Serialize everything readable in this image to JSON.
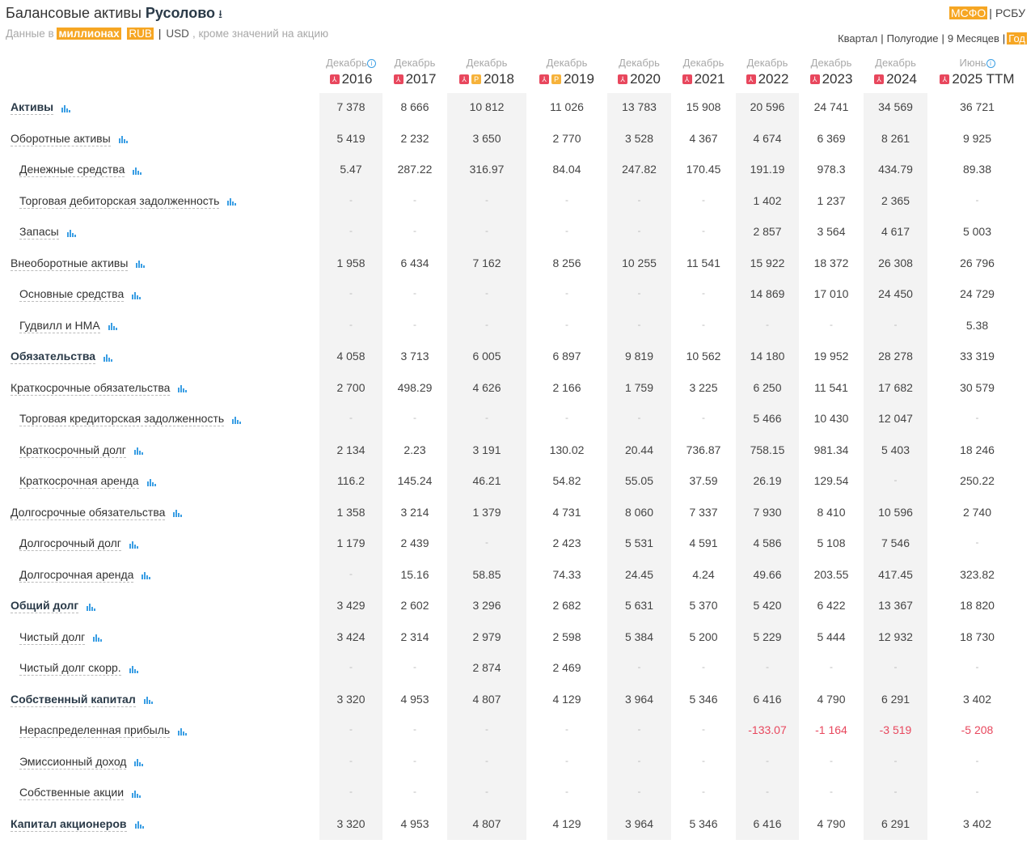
{
  "header": {
    "title_prefix": "Балансовые активы",
    "company": "Русолово",
    "download_icon": "download-icon",
    "sub_prefix": "Данные в",
    "units": "миллионах",
    "cur_rub": "RUB",
    "cur_sep": "|",
    "cur_usd": "USD",
    "sub_suffix": ", кроме значений на акцию",
    "std_ifrs": "МСФО",
    "std_sep": "|",
    "std_ras": "РСБУ",
    "periods": [
      "Квартал",
      "Полугодие",
      "9 Месяцев",
      "Год"
    ],
    "period_sep": "|"
  },
  "colors": {
    "accent": "#f6a623",
    "blue": "#3a9ee4",
    "negative": "#e8475d"
  },
  "columns": [
    {
      "month": "Декабрь",
      "year": "2016",
      "info": true,
      "pdf": true,
      "rsbu": false
    },
    {
      "month": "Декабрь",
      "year": "2017",
      "pdf": true,
      "rsbu": false
    },
    {
      "month": "Декабрь",
      "year": "2018",
      "pdf": true,
      "rsbu": true
    },
    {
      "month": "Декабрь",
      "year": "2019",
      "pdf": true,
      "rsbu": true
    },
    {
      "month": "Декабрь",
      "year": "2020",
      "pdf": true,
      "rsbu": false
    },
    {
      "month": "Декабрь",
      "year": "2021",
      "pdf": true,
      "rsbu": false
    },
    {
      "month": "Декабрь",
      "year": "2022",
      "pdf": true,
      "rsbu": false
    },
    {
      "month": "Декабрь",
      "year": "2023",
      "pdf": true,
      "rsbu": false
    },
    {
      "month": "Декабрь",
      "year": "2024",
      "pdf": true,
      "rsbu": false
    },
    {
      "month": "Июнь",
      "year": "2025 TTM",
      "info": true,
      "pdf": true,
      "rsbu": false
    }
  ],
  "badges": {
    "pdf": "",
    "rsbu": "P",
    "info": "i"
  },
  "rows": [
    {
      "label": "Активы",
      "level": "bold",
      "values": [
        "7 378",
        "8 666",
        "10 812",
        "11 026",
        "13 783",
        "15 908",
        "20 596",
        "24 741",
        "34 569",
        "36 721"
      ]
    },
    {
      "label": "Оборотные активы",
      "level": "0",
      "values": [
        "5 419",
        "2 232",
        "3 650",
        "2 770",
        "3 528",
        "4 367",
        "4 674",
        "6 369",
        "8 261",
        "9 925"
      ]
    },
    {
      "label": "Денежные средства",
      "level": "1",
      "values": [
        "5.47",
        "287.22",
        "316.97",
        "84.04",
        "247.82",
        "170.45",
        "191.19",
        "978.3",
        "434.79",
        "89.38"
      ]
    },
    {
      "label": "Торговая дебиторская задолженность",
      "level": "1",
      "values": [
        "-",
        "-",
        "-",
        "-",
        "-",
        "-",
        "1 402",
        "1 237",
        "2 365",
        "-"
      ]
    },
    {
      "label": "Запасы",
      "level": "1",
      "values": [
        "-",
        "-",
        "-",
        "-",
        "-",
        "-",
        "2 857",
        "3 564",
        "4 617",
        "5 003"
      ]
    },
    {
      "label": "Внеоборотные активы",
      "level": "0",
      "values": [
        "1 958",
        "6 434",
        "7 162",
        "8 256",
        "10 255",
        "11 541",
        "15 922",
        "18 372",
        "26 308",
        "26 796"
      ]
    },
    {
      "label": "Основные средства",
      "level": "1",
      "values": [
        "-",
        "-",
        "-",
        "-",
        "-",
        "-",
        "14 869",
        "17 010",
        "24 450",
        "24 729"
      ]
    },
    {
      "label": "Гудвилл и НМА",
      "level": "1",
      "values": [
        "-",
        "-",
        "-",
        "-",
        "-",
        "-",
        "-",
        "-",
        "-",
        "5.38"
      ]
    },
    {
      "label": "Обязательства",
      "level": "bold",
      "values": [
        "4 058",
        "3 713",
        "6 005",
        "6 897",
        "9 819",
        "10 562",
        "14 180",
        "19 952",
        "28 278",
        "33 319"
      ]
    },
    {
      "label": "Краткосрочные обязательства",
      "level": "0",
      "values": [
        "2 700",
        "498.29",
        "4 626",
        "2 166",
        "1 759",
        "3 225",
        "6 250",
        "11 541",
        "17 682",
        "30 579"
      ]
    },
    {
      "label": "Торговая кредиторская задолженность",
      "level": "1",
      "values": [
        "-",
        "-",
        "-",
        "-",
        "-",
        "-",
        "5 466",
        "10 430",
        "12 047",
        "-"
      ]
    },
    {
      "label": "Краткосрочный долг",
      "level": "1",
      "values": [
        "2 134",
        "2.23",
        "3 191",
        "130.02",
        "20.44",
        "736.87",
        "758.15",
        "981.34",
        "5 403",
        "18 246"
      ]
    },
    {
      "label": "Краткосрочная аренда",
      "level": "1",
      "values": [
        "116.2",
        "145.24",
        "46.21",
        "54.82",
        "55.05",
        "37.59",
        "26.19",
        "129.54",
        "-",
        "250.22"
      ]
    },
    {
      "label": "Долгосрочные обязательства",
      "level": "0",
      "values": [
        "1 358",
        "3 214",
        "1 379",
        "4 731",
        "8 060",
        "7 337",
        "7 930",
        "8 410",
        "10 596",
        "2 740"
      ]
    },
    {
      "label": "Долгосрочный долг",
      "level": "1",
      "values": [
        "1 179",
        "2 439",
        "-",
        "2 423",
        "5 531",
        "4 591",
        "4 586",
        "5 108",
        "7 546",
        "-"
      ]
    },
    {
      "label": "Долгосрочная аренда",
      "level": "1",
      "values": [
        "-",
        "15.16",
        "58.85",
        "74.33",
        "24.45",
        "4.24",
        "49.66",
        "203.55",
        "417.45",
        "323.82"
      ]
    },
    {
      "label": "Общий долг",
      "level": "bold",
      "values": [
        "3 429",
        "2 602",
        "3 296",
        "2 682",
        "5 631",
        "5 370",
        "5 420",
        "6 422",
        "13 367",
        "18 820"
      ]
    },
    {
      "label": "Чистый долг",
      "level": "1",
      "values": [
        "3 424",
        "2 314",
        "2 979",
        "2 598",
        "5 384",
        "5 200",
        "5 229",
        "5 444",
        "12 932",
        "18 730"
      ]
    },
    {
      "label": "Чистый долг скорр.",
      "level": "1",
      "values": [
        "-",
        "-",
        "2 874",
        "2 469",
        "-",
        "-",
        "-",
        "-",
        "-",
        "-"
      ]
    },
    {
      "label": "Собственный капитал",
      "level": "bold",
      "values": [
        "3 320",
        "4 953",
        "4 807",
        "4 129",
        "3 964",
        "5 346",
        "6 416",
        "4 790",
        "6 291",
        "3 402"
      ]
    },
    {
      "label": "Нераспределенная прибыль",
      "level": "1",
      "values": [
        "-",
        "-",
        "-",
        "-",
        "-",
        "-",
        "-133.07",
        "-1 164",
        "-3 519",
        "-5 208"
      ]
    },
    {
      "label": "Эмиссионный доход",
      "level": "1",
      "values": [
        "-",
        "-",
        "-",
        "-",
        "-",
        "-",
        "-",
        "-",
        "-",
        "-"
      ]
    },
    {
      "label": "Собственные акции",
      "level": "1",
      "values": [
        "-",
        "-",
        "-",
        "-",
        "-",
        "-",
        "-",
        "-",
        "-",
        "-"
      ]
    },
    {
      "label": "Капитал акционеров",
      "level": "bold",
      "values": [
        "3 320",
        "4 953",
        "4 807",
        "4 129",
        "3 964",
        "5 346",
        "6 416",
        "4 790",
        "6 291",
        "3 402"
      ]
    }
  ]
}
